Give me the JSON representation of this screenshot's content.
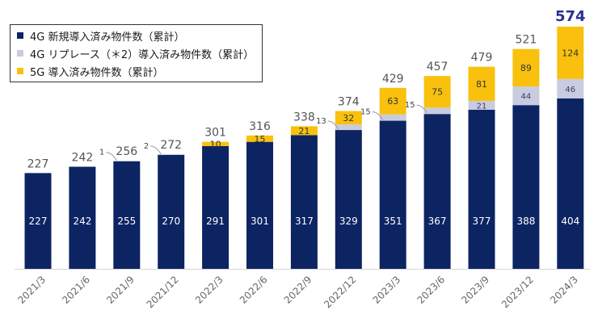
{
  "chart_data": {
    "type": "bar",
    "stacked": true,
    "categories": [
      "2021/3",
      "2021/6",
      "2021/9",
      "2021/12",
      "2022/3",
      "2022/6",
      "2022/9",
      "2022/12",
      "2023/3",
      "2023/6",
      "2023/9",
      "2023/12",
      "2024/3"
    ],
    "series": [
      {
        "name": "4G 新規導入済み物件数（累計）",
        "color": "#0d2463",
        "values": [
          227,
          242,
          255,
          270,
          291,
          301,
          317,
          329,
          351,
          367,
          377,
          388,
          404
        ]
      },
      {
        "name": "4G リプレース（＊2）導入済み物件数（累計）",
        "color": "#c9cce0",
        "values": [
          0,
          0,
          1,
          2,
          0,
          0,
          0,
          13,
          15,
          15,
          21,
          44,
          46
        ]
      },
      {
        "name": "5G 導入済み物件数（累計）",
        "color": "#f9c10d",
        "values": [
          0,
          0,
          0,
          0,
          10,
          15,
          21,
          32,
          63,
          75,
          81,
          89,
          124
        ]
      }
    ],
    "totals": [
      227,
      242,
      256,
      272,
      301,
      316,
      338,
      374,
      429,
      457,
      479,
      521,
      574
    ],
    "segment_labels": {
      "replace": [
        "",
        "",
        "1",
        "2",
        "",
        "",
        "",
        "13",
        "15",
        "15",
        "21",
        "44",
        "46"
      ],
      "g5": [
        "",
        "",
        "",
        "",
        "10",
        "15",
        "21",
        "32",
        "63",
        "75",
        "81",
        "89",
        "124"
      ]
    },
    "highlight_total_color": "#2b2f8f",
    "ylim": [
      0,
      574
    ],
    "legend_position": "top-left",
    "grid": false
  }
}
